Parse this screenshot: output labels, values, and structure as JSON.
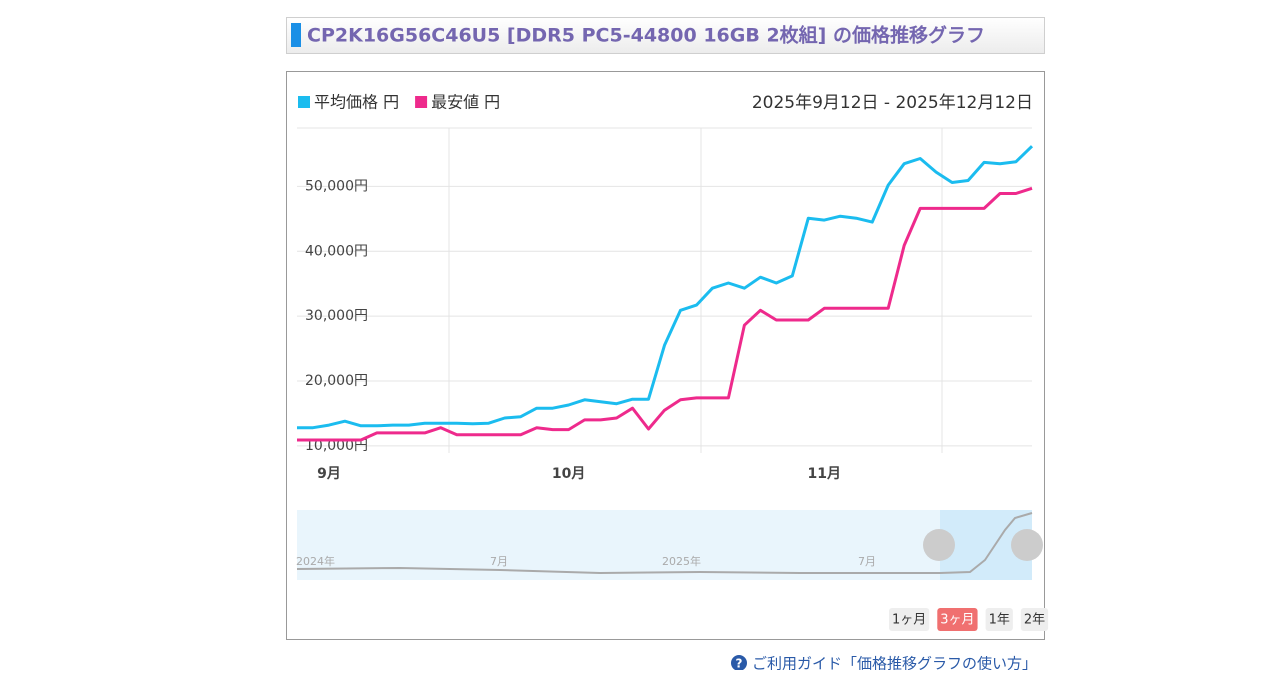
{
  "header": {
    "title": "CP2K16G56C46U5 [DDR5 PC5-44800 16GB 2枚組] の価格推移グラフ"
  },
  "chart_data": {
    "type": "line",
    "subtitle": "2025年9月12日 - 2025年12月12日",
    "categories": [
      null,
      null,
      "9月",
      null,
      null,
      null,
      null,
      null,
      null,
      null,
      null,
      null,
      null,
      null,
      null,
      null,
      null,
      "10月",
      null,
      null,
      null,
      null,
      null,
      null,
      null,
      null,
      null,
      null,
      null,
      null,
      null,
      null,
      null,
      "11月",
      null,
      null,
      null,
      null,
      null,
      null,
      null,
      null,
      null,
      null,
      null,
      null,
      null
    ],
    "series": [
      {
        "name": "平均価格 円",
        "color": "#1bbcef",
        "values": [
          12800,
          12800,
          13200,
          13800,
          13100,
          13100,
          13200,
          13200,
          13500,
          13500,
          13500,
          13400,
          13500,
          14300,
          14500,
          15800,
          15800,
          16300,
          17100,
          16800,
          16500,
          17200,
          17200,
          25500,
          30900,
          31700,
          34300,
          35100,
          34300,
          36000,
          35100,
          36200,
          45100,
          44800,
          45400,
          45100,
          44500,
          50200,
          53500,
          54300,
          52200,
          50600,
          50900,
          53700,
          53500,
          53800,
          56200
        ]
      },
      {
        "name": "最安値 円",
        "color": "#ee2a8c",
        "values": [
          10900,
          10900,
          10900,
          10900,
          10900,
          12000,
          12000,
          12000,
          12000,
          12800,
          11700,
          11700,
          11700,
          11700,
          11700,
          12800,
          12500,
          12500,
          14000,
          14000,
          14300,
          15800,
          12600,
          15500,
          17100,
          17400,
          17400,
          17400,
          28600,
          30900,
          29400,
          29400,
          29400,
          31200,
          31200,
          31200,
          31200,
          31200,
          40900,
          46600,
          46600,
          46600,
          46600,
          46600,
          48900,
          48900,
          49700
        ]
      }
    ],
    "ylim": [
      8900,
      59000
    ],
    "yticks": [
      {
        "value": 10000,
        "label": "10,000円"
      },
      {
        "value": 20000,
        "label": "20,000円"
      },
      {
        "value": 30000,
        "label": "30,000円"
      },
      {
        "value": 40000,
        "label": "40,000円"
      },
      {
        "value": 50000,
        "label": "50,000円"
      }
    ],
    "grid": true,
    "legend": "top-left"
  },
  "navigator": {
    "labels": [
      "2024年",
      "7月",
      "2025年",
      "7月"
    ]
  },
  "range_buttons": {
    "labels": [
      "1ヶ月",
      "3ヶ月",
      "1年",
      "2年"
    ],
    "active": 1
  },
  "guide_link": "ご利用ガイド「価格推移グラフの使い方」"
}
